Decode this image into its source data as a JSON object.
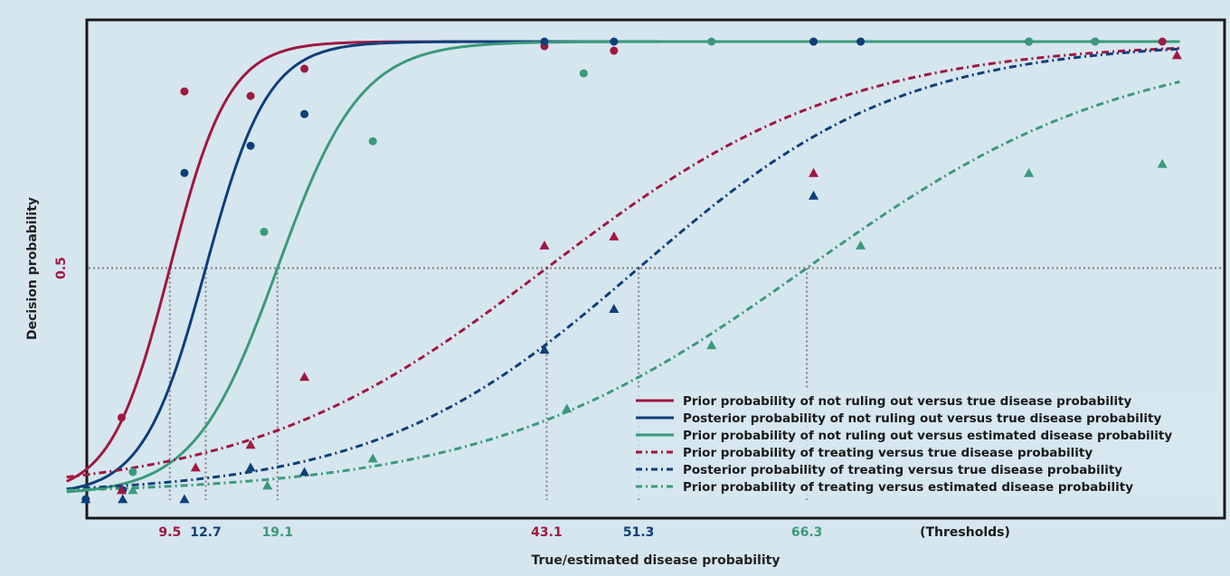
{
  "colors": {
    "background": "#d6e6ef",
    "red": "#a01840",
    "blue": "#0d3f7a",
    "green": "#3a9a7a",
    "grid": "#888888",
    "axis": "#1a1a1a"
  },
  "chart_data": {
    "type": "line",
    "xlabel": "True/estimated disease probability",
    "ylabel": "Decision probability",
    "xlim": [
      0,
      100
    ],
    "ylim": [
      0,
      1
    ],
    "y_ticks": [
      {
        "value": 0.5,
        "label": "0.5"
      }
    ],
    "threshold_label": "(Thresholds)",
    "thresholds": [
      {
        "value": 9.5,
        "label": "9.5",
        "color": "red"
      },
      {
        "value": 12.7,
        "label": "12.7",
        "color": "blue"
      },
      {
        "value": 19.1,
        "label": "19.1",
        "color": "green"
      },
      {
        "value": 43.1,
        "label": "43.1",
        "color": "red"
      },
      {
        "value": 51.3,
        "label": "51.3",
        "color": "blue"
      },
      {
        "value": 66.3,
        "label": "66.3",
        "color": "green"
      }
    ],
    "legend_position": "bottom-right",
    "series": [
      {
        "name": "Prior probability of not ruling out versus true disease probability",
        "color": "red",
        "style": "solid",
        "marker": "circle",
        "threshold": 9.5,
        "slope": 0.38,
        "points": [
          [
            5.2,
            0.17
          ],
          [
            10.8,
            0.89
          ],
          [
            16.7,
            0.88
          ],
          [
            21.5,
            0.94
          ],
          [
            42.9,
            0.99
          ],
          [
            49.1,
            0.98
          ],
          [
            66.9,
            1.0
          ],
          [
            71.1,
            1.0
          ],
          [
            86.1,
            1.0
          ],
          [
            98.0,
            1.0
          ]
        ]
      },
      {
        "name": "Posterior probability of not ruling out versus true disease probability",
        "color": "blue",
        "style": "solid",
        "marker": "circle",
        "threshold": 12.7,
        "slope": 0.36,
        "points": [
          [
            2.0,
            -0.01
          ],
          [
            5.3,
            0.01
          ],
          [
            10.8,
            0.71
          ],
          [
            16.7,
            0.77
          ],
          [
            21.5,
            0.84
          ],
          [
            42.9,
            1.0
          ],
          [
            49.1,
            1.0
          ],
          [
            66.9,
            1.0
          ],
          [
            71.1,
            1.0
          ],
          [
            86.1,
            1.0
          ],
          [
            92.0,
            1.0
          ]
        ]
      },
      {
        "name": "Prior probability of not ruling out versus estimated disease probability",
        "color": "green",
        "style": "solid",
        "marker": "circle",
        "threshold": 19.1,
        "slope": 0.27,
        "points": [
          [
            6.2,
            0.05
          ],
          [
            17.9,
            0.58
          ],
          [
            27.6,
            0.78
          ],
          [
            46.4,
            0.93
          ],
          [
            57.8,
            1.0
          ],
          [
            86.1,
            1.0
          ],
          [
            92.0,
            1.0
          ]
        ]
      },
      {
        "name": "Prior probability of treating versus true disease probability",
        "color": "red",
        "style": "dashdot",
        "marker": "triangle",
        "threshold": 43.1,
        "slope": 0.075,
        "points": [
          [
            5.2,
            0.01
          ],
          [
            11.8,
            0.06
          ],
          [
            16.7,
            0.11
          ],
          [
            21.5,
            0.26
          ],
          [
            42.9,
            0.55
          ],
          [
            49.1,
            0.57
          ],
          [
            66.9,
            0.71
          ],
          [
            99.3,
            0.97
          ]
        ]
      },
      {
        "name": "Posterior probability of treating versus true disease probability",
        "color": "blue",
        "style": "dashdot",
        "marker": "triangle",
        "threshold": 51.3,
        "slope": 0.085,
        "points": [
          [
            2.0,
            -0.01
          ],
          [
            5.3,
            -0.01
          ],
          [
            10.8,
            -0.01
          ],
          [
            16.7,
            0.06
          ],
          [
            21.5,
            0.05
          ],
          [
            42.9,
            0.32
          ],
          [
            49.1,
            0.41
          ],
          [
            66.9,
            0.66
          ]
        ]
      },
      {
        "name": "Prior probability of treating versus estimated disease probability",
        "color": "green",
        "style": "dashdot",
        "marker": "triangle",
        "threshold": 66.3,
        "slope": 0.07,
        "points": [
          [
            6.2,
            0.01
          ],
          [
            18.2,
            0.02
          ],
          [
            27.6,
            0.08
          ],
          [
            44.9,
            0.19
          ],
          [
            57.8,
            0.33
          ],
          [
            71.1,
            0.55
          ],
          [
            86.1,
            0.71
          ],
          [
            98.0,
            0.73
          ]
        ]
      }
    ]
  }
}
